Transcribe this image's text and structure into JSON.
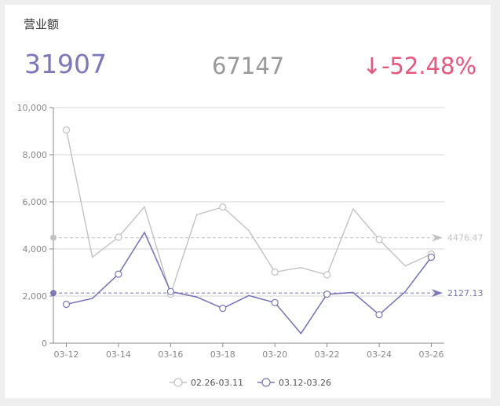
{
  "title": "营业额",
  "kpis": {
    "current": "31907",
    "previous": "67147",
    "change": "↓-52.48%"
  },
  "colors": {
    "current": "#7b77b8",
    "previous": "#c2c2c2",
    "change": "#e8567d"
  },
  "chart_data": {
    "type": "line",
    "title": "",
    "xlabel": "",
    "ylabel": "",
    "ylim": [
      0,
      10000
    ],
    "yticks": [
      "0",
      "2,000",
      "4,000",
      "6,000",
      "8,000",
      "10,000"
    ],
    "categories": [
      "03-12",
      "03-13",
      "03-14",
      "03-15",
      "03-16",
      "03-17",
      "03-18",
      "03-19",
      "03-20",
      "03-21",
      "03-22",
      "03-23",
      "03-24",
      "03-25",
      "03-26"
    ],
    "xtick_labels": [
      "03-12",
      "03-14",
      "03-16",
      "03-18",
      "03-20",
      "03-22",
      "03-24",
      "03-26"
    ],
    "marker_indices": [
      0,
      2,
      4,
      6,
      8,
      10,
      12,
      14
    ],
    "grid": true,
    "legend_position": "bottom-center",
    "series": [
      {
        "name": "02.26-03.11",
        "color": "#c2c2c2",
        "values": [
          9050,
          3650,
          4500,
          5780,
          2080,
          5450,
          5780,
          4780,
          3020,
          3210,
          2900,
          5700,
          4400,
          3280,
          3780
        ]
      },
      {
        "name": "03.12-03.26",
        "color": "#7b77b8",
        "values": [
          1650,
          1900,
          2930,
          4700,
          2190,
          1960,
          1480,
          2020,
          1720,
          410,
          2080,
          2150,
          1210,
          2190,
          3650
        ]
      }
    ],
    "reference_lines": [
      {
        "series": "02.26-03.11",
        "value": 4476.47,
        "label": "4476.47",
        "color": "#c2c2c2"
      },
      {
        "series": "03.12-03.26",
        "value": 2127.13,
        "label": "2127.13",
        "color": "#7b77b8"
      }
    ]
  }
}
